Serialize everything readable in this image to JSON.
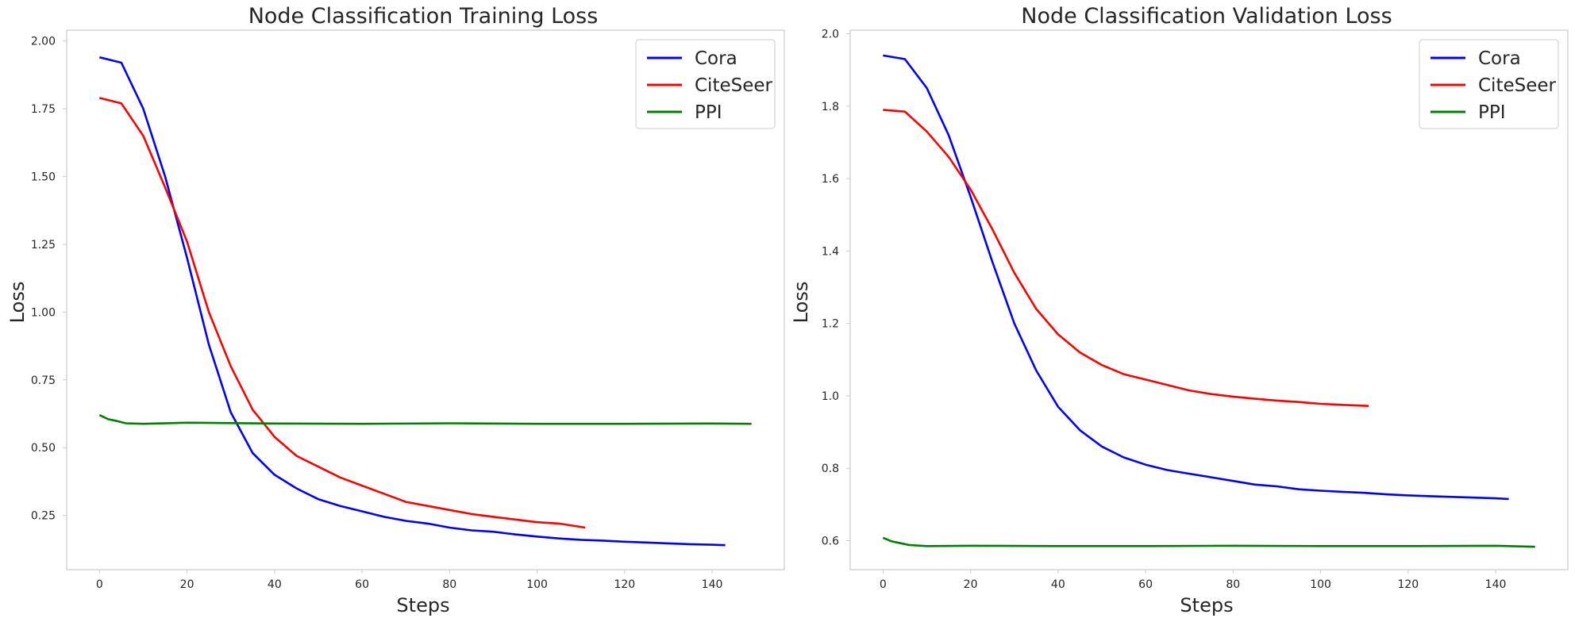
{
  "chart_data": [
    {
      "type": "line",
      "title": "Node Classification Training Loss",
      "xlabel": "Steps",
      "ylabel": "Loss",
      "xlim": [
        -7.5,
        156.5
      ],
      "ylim": [
        0.05,
        2.04
      ],
      "xticks": [
        0,
        20,
        40,
        60,
        80,
        100,
        120,
        140
      ],
      "yticks": [
        0.25,
        0.5,
        0.75,
        1.0,
        1.25,
        1.5,
        1.75,
        2.0
      ],
      "ytick_labels": [
        "0.25",
        "0.50",
        "0.75",
        "1.00",
        "1.25",
        "1.50",
        "1.75",
        "2.00"
      ],
      "grid": false,
      "legend": "top-right",
      "series": [
        {
          "name": "Cora",
          "color": "#0000ff",
          "x": [
            0,
            5,
            10,
            15,
            20,
            25,
            30,
            35,
            40,
            45,
            50,
            55,
            60,
            65,
            70,
            75,
            80,
            85,
            90,
            95,
            100,
            105,
            110,
            115,
            120,
            125,
            130,
            135,
            140,
            143
          ],
          "y": [
            1.94,
            1.92,
            1.75,
            1.5,
            1.2,
            0.88,
            0.63,
            0.48,
            0.4,
            0.35,
            0.31,
            0.285,
            0.265,
            0.245,
            0.23,
            0.22,
            0.205,
            0.195,
            0.19,
            0.18,
            0.172,
            0.165,
            0.16,
            0.157,
            0.153,
            0.15,
            0.147,
            0.144,
            0.142,
            0.14
          ]
        },
        {
          "name": "CiteSeer",
          "color": "#ff0000",
          "x": [
            0,
            5,
            10,
            15,
            20,
            25,
            30,
            35,
            40,
            45,
            50,
            55,
            60,
            65,
            70,
            75,
            80,
            85,
            90,
            95,
            100,
            105,
            111
          ],
          "y": [
            1.79,
            1.77,
            1.65,
            1.46,
            1.26,
            1.0,
            0.8,
            0.64,
            0.54,
            0.47,
            0.43,
            0.39,
            0.36,
            0.33,
            0.3,
            0.285,
            0.27,
            0.255,
            0.245,
            0.235,
            0.225,
            0.22,
            0.205
          ]
        },
        {
          "name": "PPI",
          "color": "#008000",
          "x": [
            0,
            2,
            4,
            6,
            10,
            20,
            40,
            60,
            80,
            100,
            120,
            140,
            149
          ],
          "y": [
            0.62,
            0.605,
            0.598,
            0.59,
            0.588,
            0.592,
            0.589,
            0.588,
            0.59,
            0.588,
            0.588,
            0.589,
            0.588
          ]
        }
      ]
    },
    {
      "type": "line",
      "title": "Node Classification Validation Loss",
      "xlabel": "Steps",
      "ylabel": "Loss",
      "xlim": [
        -7.5,
        156.5
      ],
      "ylim": [
        0.52,
        2.01
      ],
      "xticks": [
        0,
        20,
        40,
        60,
        80,
        100,
        120,
        140
      ],
      "yticks": [
        0.6,
        0.8,
        1.0,
        1.2,
        1.4,
        1.6,
        1.8,
        2.0
      ],
      "ytick_labels": [
        "0.6",
        "0.8",
        "1.0",
        "1.2",
        "1.4",
        "1.6",
        "1.8",
        "2.0"
      ],
      "grid": false,
      "legend": "top-right",
      "series": [
        {
          "name": "Cora",
          "color": "#0000ff",
          "x": [
            0,
            5,
            10,
            15,
            20,
            25,
            30,
            35,
            40,
            45,
            50,
            55,
            60,
            65,
            70,
            75,
            80,
            85,
            90,
            95,
            100,
            105,
            110,
            115,
            120,
            125,
            130,
            135,
            140,
            143
          ],
          "y": [
            1.94,
            1.93,
            1.85,
            1.72,
            1.55,
            1.37,
            1.2,
            1.07,
            0.97,
            0.905,
            0.86,
            0.83,
            0.81,
            0.795,
            0.785,
            0.775,
            0.765,
            0.755,
            0.75,
            0.742,
            0.738,
            0.735,
            0.732,
            0.728,
            0.725,
            0.723,
            0.721,
            0.719,
            0.717,
            0.715
          ]
        },
        {
          "name": "CiteSeer",
          "color": "#ff0000",
          "x": [
            0,
            5,
            10,
            15,
            20,
            25,
            30,
            35,
            40,
            45,
            50,
            55,
            60,
            65,
            70,
            75,
            80,
            85,
            90,
            95,
            100,
            105,
            111
          ],
          "y": [
            1.79,
            1.785,
            1.73,
            1.66,
            1.57,
            1.46,
            1.34,
            1.24,
            1.17,
            1.12,
            1.085,
            1.06,
            1.045,
            1.03,
            1.015,
            1.005,
            0.998,
            0.992,
            0.987,
            0.983,
            0.978,
            0.975,
            0.972
          ]
        },
        {
          "name": "PPI",
          "color": "#008000",
          "x": [
            0,
            2,
            4,
            6,
            10,
            20,
            40,
            60,
            80,
            100,
            120,
            140,
            149
          ],
          "y": [
            0.608,
            0.598,
            0.593,
            0.588,
            0.585,
            0.586,
            0.585,
            0.585,
            0.586,
            0.585,
            0.585,
            0.586,
            0.583
          ]
        }
      ]
    }
  ]
}
